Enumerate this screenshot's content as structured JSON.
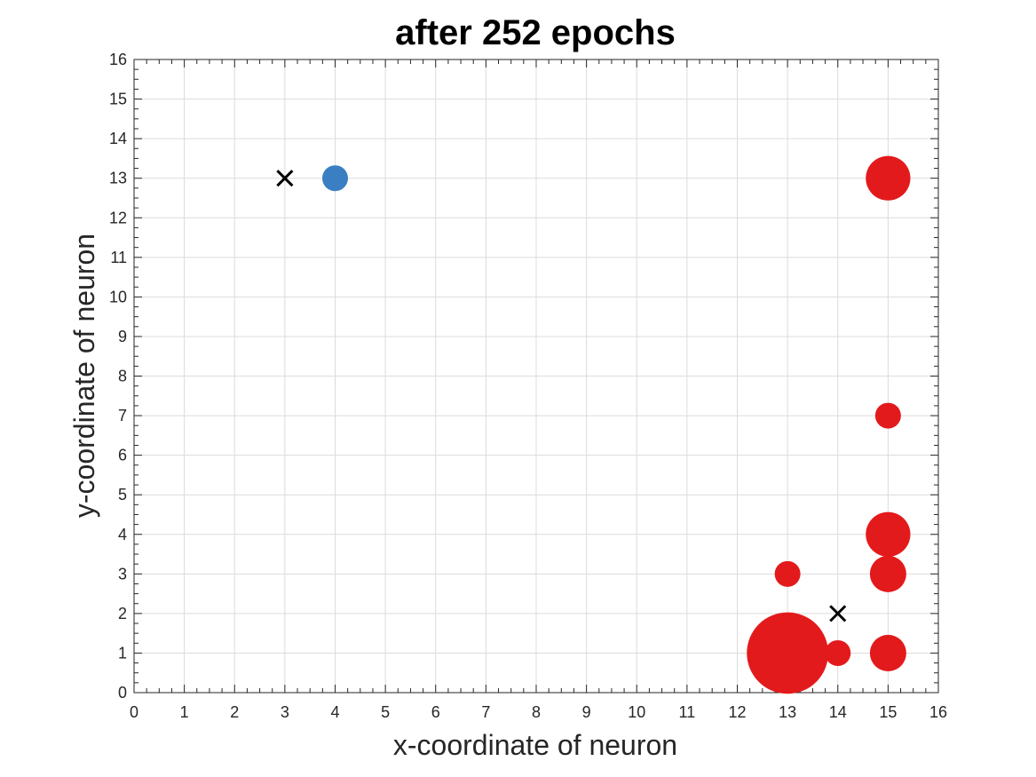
{
  "chart_data": {
    "type": "scatter",
    "title": "after 252 epochs",
    "xlabel": "x-coordinate of neuron",
    "ylabel": "y-coordinate of neuron",
    "xlim": [
      0,
      16
    ],
    "ylim": [
      0,
      16
    ],
    "xticks": [
      "0",
      "1",
      "2",
      "3",
      "4",
      "5",
      "6",
      "7",
      "8",
      "9",
      "10",
      "11",
      "12",
      "13",
      "14",
      "15",
      "16"
    ],
    "yticks": [
      "0",
      "1",
      "2",
      "3",
      "4",
      "5",
      "6",
      "7",
      "8",
      "9",
      "10",
      "11",
      "12",
      "13",
      "14",
      "15",
      "16"
    ],
    "grid": true,
    "minor_ticks": true,
    "colors": {
      "class_a": "#e31a1c",
      "class_b": "#3a7fc1",
      "cross": "#000000",
      "grid": "#dcdcdc",
      "axis": "#262626"
    },
    "series": [
      {
        "marker": "circle",
        "color": "#e31a1c",
        "points": [
          {
            "x": 13,
            "y": 1,
            "size": 10
          },
          {
            "x": 14,
            "y": 1,
            "size": 1
          },
          {
            "x": 15,
            "y": 1,
            "size": 2
          },
          {
            "x": 13,
            "y": 3,
            "size": 1
          },
          {
            "x": 15,
            "y": 3,
            "size": 2
          },
          {
            "x": 15,
            "y": 4,
            "size": 3
          },
          {
            "x": 15,
            "y": 7,
            "size": 1
          },
          {
            "x": 15,
            "y": 13,
            "size": 3
          }
        ]
      },
      {
        "marker": "circle",
        "color": "#3a7fc1",
        "points": [
          {
            "x": 4,
            "y": 13,
            "size": 1
          }
        ]
      },
      {
        "marker": "x",
        "color": "#000000",
        "points": [
          {
            "x": 3,
            "y": 13
          },
          {
            "x": 14,
            "y": 2
          }
        ]
      }
    ]
  }
}
